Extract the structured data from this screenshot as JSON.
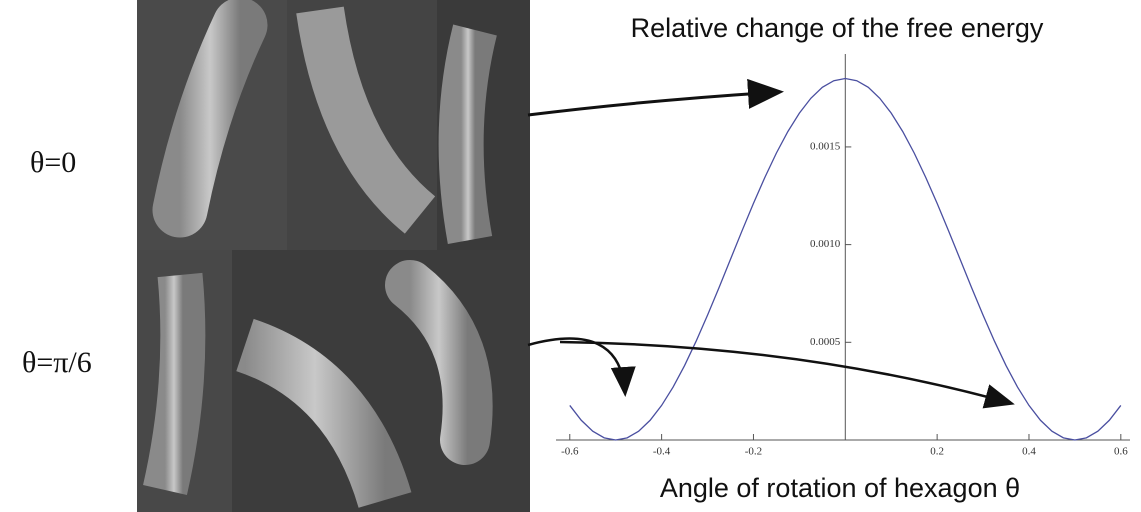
{
  "panel_labels": [
    "θ=0",
    "θ=π/6"
  ],
  "chart_data": {
    "type": "line",
    "title": "Relative change of the free energy",
    "x_label": "Angle of rotation of hexagon θ",
    "x": [
      -0.6,
      -0.575,
      -0.55,
      -0.525,
      -0.5,
      -0.475,
      -0.45,
      -0.425,
      -0.4,
      -0.375,
      -0.35,
      -0.325,
      -0.3,
      -0.275,
      -0.25,
      -0.225,
      -0.2,
      -0.175,
      -0.15,
      -0.125,
      -0.1,
      -0.075,
      -0.05,
      -0.025,
      0,
      0.025,
      0.05,
      0.075,
      0.1,
      0.125,
      0.15,
      0.175,
      0.2,
      0.225,
      0.25,
      0.275,
      0.3,
      0.325,
      0.35,
      0.375,
      0.4,
      0.425,
      0.45,
      0.475,
      0.5,
      0.525,
      0.55,
      0.575,
      0.6
    ],
    "values": [
      0.000177,
      0.000101,
      4.5e-05,
      1.1e-05,
      0,
      1.1e-05,
      4.5e-05,
      0.000101,
      0.000177,
      0.000271,
      0.000381,
      0.000505,
      0.000639,
      0.00078,
      0.000925,
      0.00107,
      0.001211,
      0.001345,
      0.001469,
      0.001579,
      0.001673,
      0.001749,
      0.001805,
      0.001839,
      0.00185,
      0.001839,
      0.001805,
      0.001749,
      0.001673,
      0.001579,
      0.001469,
      0.001345,
      0.001211,
      0.00107,
      0.000925,
      0.00078,
      0.000639,
      0.000505,
      0.000381,
      0.000271,
      0.000177,
      0.000101,
      4.5e-05,
      1.1e-05,
      0,
      1.1e-05,
      4.5e-05,
      0.000101,
      0.000177
    ],
    "color": "#4a4fa0",
    "xlim": [
      -0.63,
      0.62
    ],
    "ylim": [
      0,
      0.00195
    ],
    "xticks": [
      -0.6,
      -0.4,
      -0.2,
      0.2,
      0.4,
      0.6
    ],
    "yticks": [
      0.0005,
      {
        "value": 0.001,
        "label": "0.0010"
      },
      0.0015
    ]
  }
}
